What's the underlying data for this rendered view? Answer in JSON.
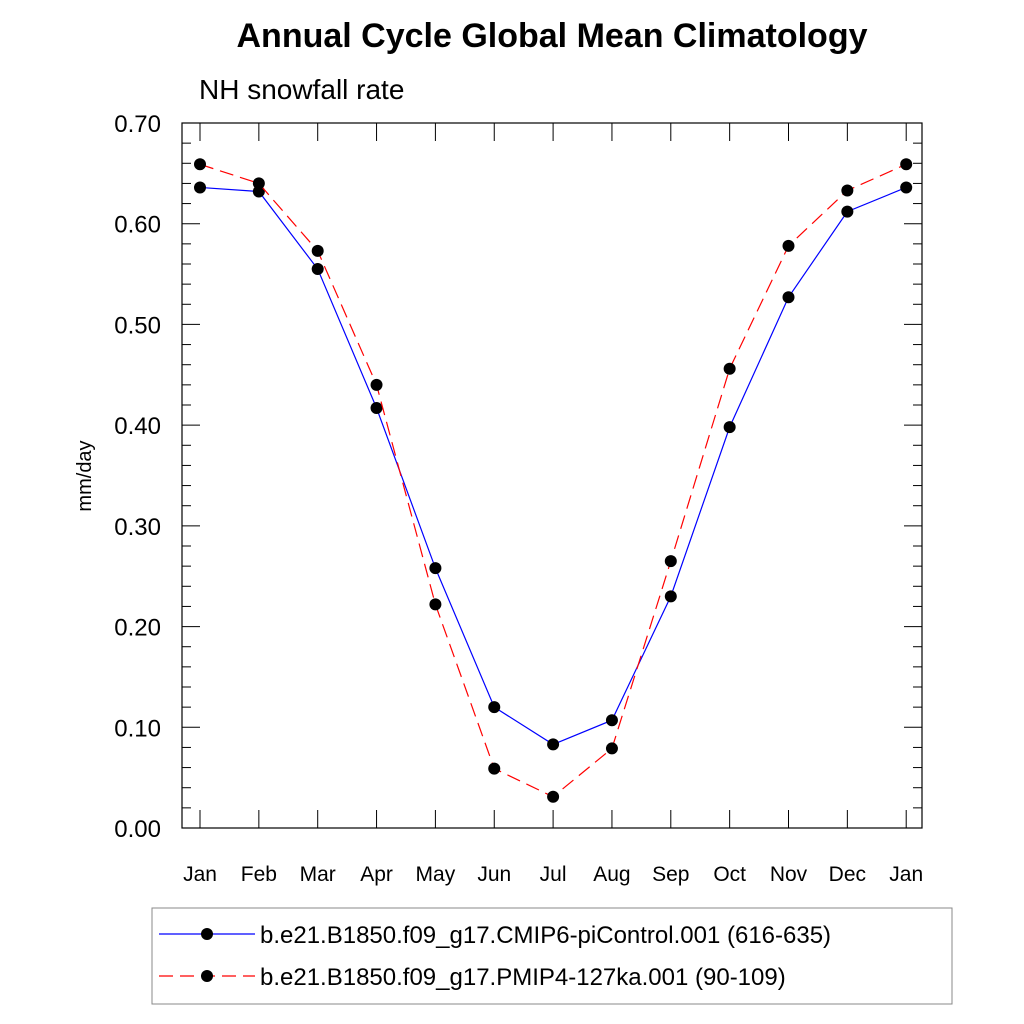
{
  "chart_data": {
    "type": "line",
    "title": "Annual Cycle Global Mean Climatology",
    "subtitle": "NH snowfall rate",
    "xlabel": "",
    "ylabel": "mm/day",
    "ylim": [
      0.0,
      0.7
    ],
    "yticks": [
      "0.00",
      "0.10",
      "0.20",
      "0.30",
      "0.40",
      "0.50",
      "0.60",
      "0.70"
    ],
    "categories": [
      "Jan",
      "Feb",
      "Mar",
      "Apr",
      "May",
      "Jun",
      "Jul",
      "Aug",
      "Sep",
      "Oct",
      "Nov",
      "Dec",
      "Jan"
    ],
    "series": [
      {
        "name": "b.e21.B1850.f09_g17.CMIP6-piControl.001 (616-635)",
        "color": "#0000ff",
        "dash": "solid",
        "values": [
          0.636,
          0.632,
          0.555,
          0.417,
          0.258,
          0.12,
          0.083,
          0.107,
          0.23,
          0.398,
          0.527,
          0.612,
          0.636
        ]
      },
      {
        "name": "b.e21.B1850.f09_g17.PMIP4-127ka.001 (90-109)",
        "color": "#ff0000",
        "dash": "dashed",
        "values": [
          0.659,
          0.64,
          0.573,
          0.44,
          0.222,
          0.059,
          0.031,
          0.079,
          0.265,
          0.456,
          0.578,
          0.633,
          0.659
        ]
      }
    ],
    "legend_position": "bottom"
  }
}
